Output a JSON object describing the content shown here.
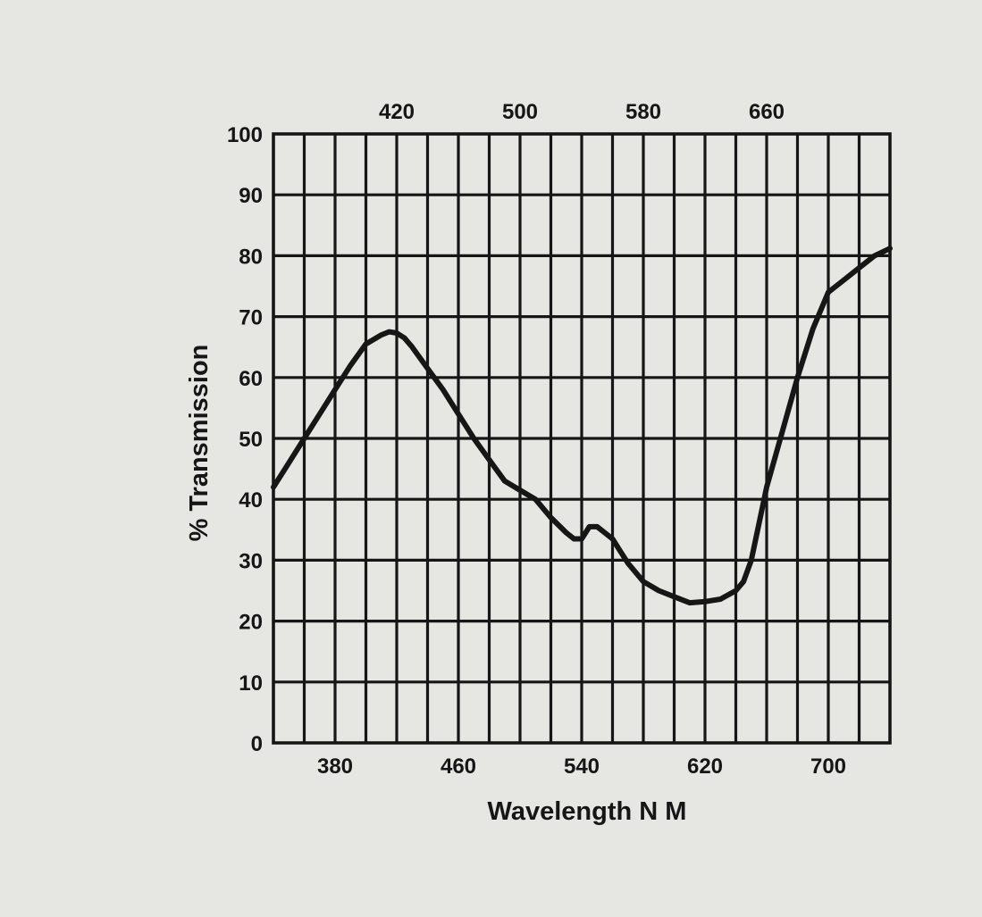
{
  "chart_data": {
    "type": "line",
    "title": "",
    "xlabel": "Wavelength N M",
    "ylabel": "% Transmission",
    "xlim": [
      340,
      740
    ],
    "ylim": [
      0,
      100
    ],
    "grid": true,
    "legend": "none",
    "x_ticks_bottom": [
      380,
      460,
      540,
      620,
      700
    ],
    "x_ticks_top": [
      420,
      500,
      580,
      660
    ],
    "y_ticks": [
      0,
      10,
      20,
      30,
      40,
      50,
      60,
      70,
      80,
      90,
      100
    ],
    "series": [
      {
        "x": [
          340,
          350,
          360,
          370,
          380,
          390,
          400,
          410,
          415,
          420,
          425,
          430,
          440,
          450,
          460,
          470,
          480,
          490,
          500,
          510,
          520,
          530,
          535,
          540,
          545,
          550,
          555,
          560,
          565,
          570,
          580,
          590,
          600,
          610,
          620,
          630,
          640,
          645,
          650,
          655,
          660,
          670,
          680,
          690,
          700,
          710,
          720,
          730,
          740
        ],
        "y": [
          42,
          46,
          50,
          54,
          58,
          62,
          65.5,
          67,
          67.5,
          67.3,
          66.5,
          65,
          61.5,
          58,
          54,
          50,
          46.5,
          43,
          41.5,
          40,
          37,
          34.5,
          33.5,
          33.5,
          35.5,
          35.5,
          34.5,
          33.5,
          31.5,
          29.5,
          26.5,
          25,
          24,
          23,
          23.2,
          23.6,
          25,
          26.5,
          30,
          36,
          42,
          51,
          60,
          68,
          74,
          76,
          78,
          80,
          81.2
        ]
      }
    ],
    "colors": {
      "background": "#e6e6e3",
      "ink": "#161616"
    }
  }
}
